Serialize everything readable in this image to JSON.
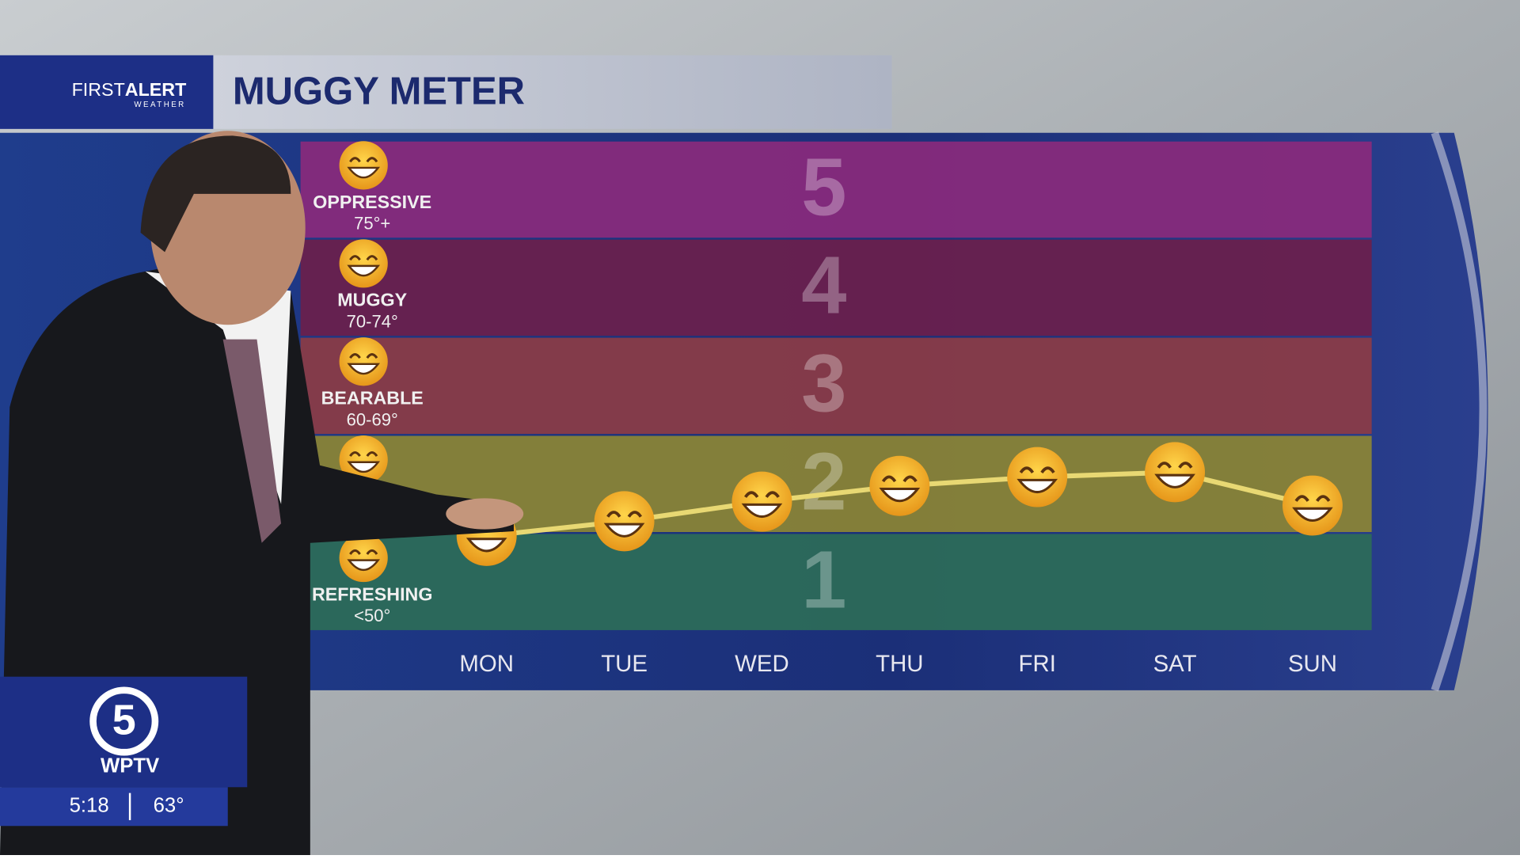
{
  "chart_data": {
    "type": "line",
    "title": "MUGGY METER",
    "brand": "FIRST",
    "brand_bold": "ALERT",
    "brand_sub": "WEATHER",
    "categories": [
      "MON",
      "TUE",
      "WED",
      "THU",
      "FRI",
      "SAT",
      "SUN"
    ],
    "values": [
      1.47,
      1.62,
      1.82,
      1.98,
      2.07,
      2.12,
      1.78
    ],
    "color": "#e8d873",
    "ylim": [
      0.5,
      5.5
    ],
    "yticks": [
      1,
      2,
      3,
      4,
      5
    ],
    "band_colors": [
      "#2c6d58",
      "#8c8634",
      "#8c3c45",
      "#6b1f4c",
      "#8a2a7c"
    ],
    "levels": [
      {
        "level": 5,
        "label": "OPPRESSIVE",
        "range": "75°+"
      },
      {
        "level": 4,
        "label": "MUGGY",
        "range": "70-74°"
      },
      {
        "level": 3,
        "label": "BEARABLE",
        "range": "60-69°"
      },
      {
        "level": 1,
        "label": "REFRESHING",
        "range": "<50°"
      }
    ]
  },
  "station": {
    "channel": "5",
    "name": "WPTV",
    "time": "5:18",
    "temperature": "63°"
  }
}
